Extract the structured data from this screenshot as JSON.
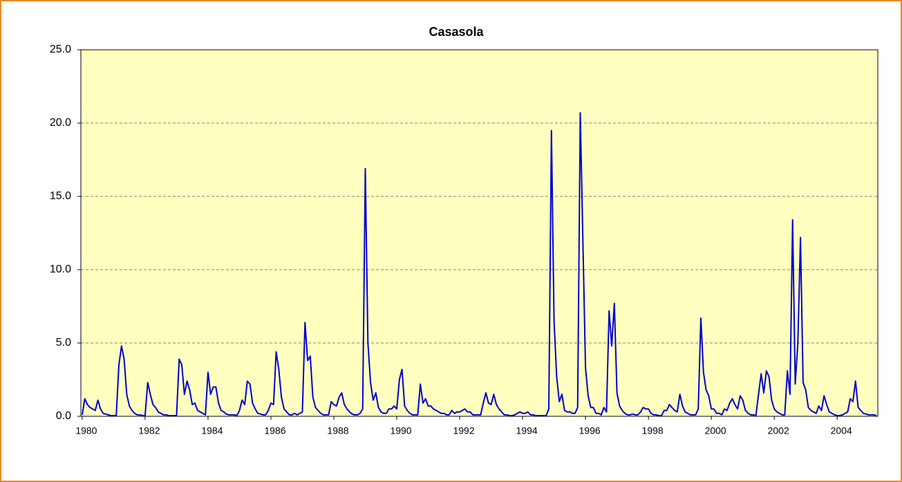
{
  "chart_data": {
    "type": "line",
    "title": "Casasola",
    "categories": [
      "1980",
      null,
      null,
      null,
      null,
      null,
      null,
      null,
      null,
      null,
      null,
      null,
      null,
      null,
      null,
      null,
      null,
      null,
      null,
      null,
      null,
      null,
      null,
      null,
      "1982",
      null,
      null,
      null,
      null,
      null,
      null,
      null,
      null,
      null,
      null,
      null,
      null,
      null,
      null,
      null,
      null,
      null,
      null,
      null,
      null,
      null,
      null,
      null,
      "1984",
      null,
      null,
      null,
      null,
      null,
      null,
      null,
      null,
      null,
      null,
      null,
      null,
      null,
      null,
      null,
      null,
      null,
      null,
      null,
      null,
      null,
      null,
      null,
      "1986",
      null,
      null,
      null,
      null,
      null,
      null,
      null,
      null,
      null,
      null,
      null,
      null,
      null,
      null,
      null,
      null,
      null,
      null,
      null,
      null,
      null,
      null,
      null,
      "1988",
      null,
      null,
      null,
      null,
      null,
      null,
      null,
      null,
      null,
      null,
      null,
      null,
      null,
      null,
      null,
      null,
      null,
      null,
      null,
      null,
      null,
      null,
      null,
      "1990",
      null,
      null,
      null,
      null,
      null,
      null,
      null,
      null,
      null,
      null,
      null,
      null,
      null,
      null,
      null,
      null,
      null,
      null,
      null,
      null,
      null,
      null,
      null,
      "1992",
      null,
      null,
      null,
      null,
      null,
      null,
      null,
      null,
      null,
      null,
      null,
      null,
      null,
      null,
      null,
      null,
      null,
      null,
      null,
      null,
      null,
      null,
      null,
      "1994",
      null,
      null,
      null,
      null,
      null,
      null,
      null,
      null,
      null,
      null,
      null,
      null,
      null,
      null,
      null,
      null,
      null,
      null,
      null,
      null,
      null,
      null,
      null,
      "1996",
      null,
      null,
      null,
      null,
      null,
      null,
      null,
      null,
      null,
      null,
      null,
      null,
      null,
      null,
      null,
      null,
      null,
      null,
      null,
      null,
      null,
      null,
      null,
      "1998",
      null,
      null,
      null,
      null,
      null,
      null,
      null,
      null,
      null,
      null,
      null,
      null,
      null,
      null,
      null,
      null,
      null,
      null,
      null,
      null,
      null,
      null,
      null,
      "2000",
      null,
      null,
      null,
      null,
      null,
      null,
      null,
      null,
      null,
      null,
      null,
      null,
      null,
      null,
      null,
      null,
      null,
      null,
      null,
      null,
      null,
      null,
      null,
      "2002",
      null,
      null,
      null,
      null,
      null,
      null,
      null,
      null,
      null,
      null,
      null,
      null,
      null,
      null,
      null,
      null,
      null,
      null,
      null,
      null,
      null,
      null,
      null,
      "2004",
      null,
      null,
      null,
      null,
      null,
      null,
      null,
      null,
      null,
      null,
      null,
      null,
      null,
      null,
      null
    ],
    "series": [
      {
        "color": "#0000cc",
        "values": [
          0.1,
          1.2,
          0.8,
          0.6,
          0.5,
          0.4,
          1.1,
          0.5,
          0.2,
          0.15,
          0.1,
          0.05,
          0.05,
          0.05,
          3.5,
          4.8,
          3.9,
          1.5,
          0.7,
          0.4,
          0.2,
          0.1,
          0.1,
          0.05,
          0.05,
          2.3,
          1.5,
          0.8,
          0.6,
          0.3,
          0.2,
          0.1,
          0.1,
          0.05,
          0.05,
          0.05,
          0.05,
          3.9,
          3.5,
          1.5,
          2.4,
          1.8,
          0.8,
          0.9,
          0.4,
          0.3,
          0.2,
          0.1,
          3.0,
          1.5,
          2.0,
          2.0,
          0.9,
          0.4,
          0.3,
          0.15,
          0.1,
          0.1,
          0.1,
          0.05,
          0.4,
          1.1,
          0.8,
          2.4,
          2.2,
          0.9,
          0.5,
          0.2,
          0.15,
          0.1,
          0.1,
          0.4,
          0.9,
          0.8,
          4.4,
          3.2,
          1.3,
          0.5,
          0.3,
          0.1,
          0.1,
          0.2,
          0.1,
          0.2,
          0.3,
          6.4,
          3.8,
          4.1,
          1.3,
          0.6,
          0.4,
          0.2,
          0.1,
          0.1,
          0.1,
          1.0,
          0.8,
          0.7,
          1.3,
          1.6,
          0.8,
          0.5,
          0.3,
          0.15,
          0.1,
          0.1,
          0.2,
          0.5,
          16.9,
          5.0,
          2.3,
          1.1,
          1.6,
          0.6,
          0.3,
          0.2,
          0.2,
          0.5,
          0.5,
          0.7,
          0.5,
          2.5,
          3.2,
          0.7,
          0.4,
          0.2,
          0.1,
          0.1,
          0.1,
          2.2,
          0.9,
          1.2,
          0.7,
          0.7,
          0.5,
          0.4,
          0.3,
          0.2,
          0.2,
          0.1,
          0.1,
          0.4,
          0.2,
          0.3,
          0.3,
          0.4,
          0.5,
          0.3,
          0.3,
          0.1,
          0.1,
          0.1,
          0.1,
          0.9,
          1.6,
          0.9,
          0.8,
          1.5,
          0.8,
          0.5,
          0.3,
          0.1,
          0.1,
          0.05,
          0.05,
          0.1,
          0.2,
          0.3,
          0.2,
          0.2,
          0.3,
          0.1,
          0.1,
          0.05,
          0.05,
          0.05,
          0.05,
          0.05,
          0.5,
          19.5,
          6.5,
          2.7,
          1.0,
          1.5,
          0.4,
          0.3,
          0.3,
          0.2,
          0.2,
          0.6,
          20.7,
          12.0,
          3.3,
          1.4,
          0.6,
          0.6,
          0.2,
          0.2,
          0.1,
          0.6,
          0.3,
          7.2,
          4.8,
          7.7,
          1.6,
          0.7,
          0.4,
          0.2,
          0.1,
          0.1,
          0.15,
          0.1,
          0.1,
          0.3,
          0.6,
          0.5,
          0.5,
          0.2,
          0.1,
          0.1,
          0.05,
          0.05,
          0.4,
          0.4,
          0.8,
          0.6,
          0.4,
          0.3,
          1.5,
          0.7,
          0.3,
          0.2,
          0.1,
          0.1,
          0.1,
          0.5,
          6.7,
          3.0,
          1.8,
          1.4,
          0.5,
          0.5,
          0.2,
          0.2,
          0.1,
          0.5,
          0.4,
          0.9,
          1.2,
          0.8,
          0.5,
          1.4,
          1.1,
          0.4,
          0.2,
          0.1,
          0.1,
          0.05,
          1.5,
          2.9,
          1.6,
          3.1,
          2.7,
          1.1,
          0.5,
          0.3,
          0.2,
          0.1,
          0.1,
          3.1,
          1.5,
          13.4,
          2.2,
          5.0,
          12.2,
          2.3,
          1.8,
          0.6,
          0.4,
          0.3,
          0.2,
          0.7,
          0.4,
          1.4,
          0.8,
          0.3,
          0.2,
          0.1,
          0.05,
          0.05,
          0.1,
          0.2,
          0.3,
          1.2,
          1.0,
          2.4,
          0.6,
          0.4,
          0.2,
          0.15,
          0.1,
          0.1,
          0.1,
          0.05
        ]
      }
    ],
    "ylim": [
      0,
      25
    ],
    "yticks": [
      {
        "value": 0,
        "label": "0.0"
      },
      {
        "value": 5,
        "label": "5.0"
      },
      {
        "value": 10,
        "label": "10.0"
      },
      {
        "value": 15,
        "label": "15.0"
      },
      {
        "value": 20,
        "label": "20.0"
      },
      {
        "value": 25,
        "label": "25.0"
      }
    ],
    "grid": true,
    "plot_background": "#ffffc0"
  }
}
